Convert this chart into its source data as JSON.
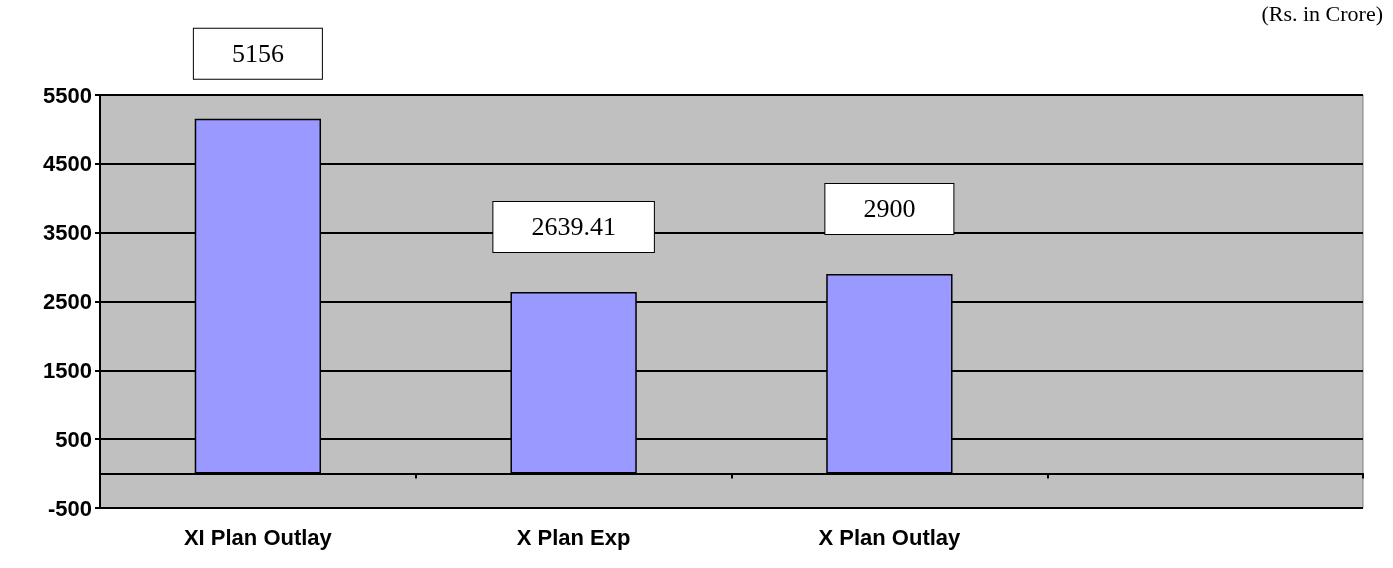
{
  "chart_data": {
    "type": "bar",
    "categories": [
      "XI Plan Outlay",
      "X Plan Exp",
      "X Plan Outlay",
      null
    ],
    "values": [
      5156,
      2639.41,
      2900,
      null
    ],
    "color": "#9999ff",
    "ylim": [
      -500,
      5500
    ],
    "yticks": [
      -500,
      500,
      1500,
      2500,
      3500,
      4500,
      5500
    ],
    "grid": "y",
    "data_labels": true,
    "annotations": [
      "(Rs. in Crore)"
    ]
  }
}
